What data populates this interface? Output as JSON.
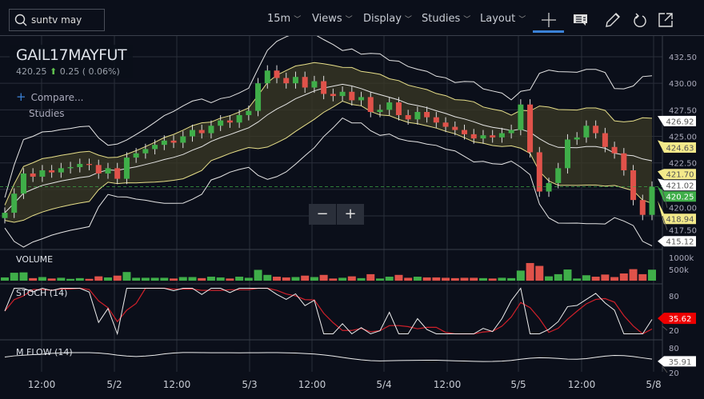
{
  "toolbar": {
    "search_value": "suntv may",
    "interval": "15m",
    "views": "Views",
    "display": "Display",
    "studies": "Studies",
    "layout": "Layout",
    "icons": [
      "crosshair-icon",
      "comment-icon",
      "pencil-icon",
      "undo-icon",
      "popout-icon"
    ]
  },
  "legend": {
    "symbol": "GAIL17MAYFUT",
    "last": "420.25",
    "change": "0.25",
    "change_pct": "( 0.06%)",
    "compare": "Compare...",
    "studies": "Studies"
  },
  "zoom": {
    "minus": "−",
    "plus": "+"
  },
  "colors": {
    "up": "#3fae49",
    "down": "#e0524a",
    "band_outer": "#e6e6e6",
    "band_inner": "#e8e08a",
    "band_fill": "#3b3a26",
    "stoch_d": "#d0202a",
    "accent": "#3b82d8"
  },
  "chart_data": [
    {
      "type": "candlestick",
      "pane": "price",
      "title": "GAIL17MAYFUT",
      "overlay": "bollinger-bands",
      "x_ticks": [
        "12:00",
        "5/2",
        "12:00",
        "5/3",
        "12:00",
        "5/4",
        "12:00",
        "5/5",
        "12:00",
        "5/8"
      ],
      "y_ticks": [
        "432.50",
        "430.00",
        "427.50",
        "425.00",
        "422.50",
        "420.00",
        "417.50"
      ],
      "ylim": [
        416,
        433.5
      ],
      "close": [
        417.8,
        419.6,
        421.5,
        421.2,
        421.8,
        421.6,
        422.0,
        422.1,
        422.4,
        422.3,
        421.5,
        422.0,
        421.0,
        423.0,
        423.4,
        423.8,
        424.2,
        424.6,
        424.4,
        425.0,
        425.6,
        425.3,
        426.0,
        426.5,
        426.3,
        427.0,
        427.4,
        430.0,
        431.2,
        430.5,
        430.0,
        430.6,
        429.6,
        430.2,
        429.0,
        428.8,
        429.2,
        428.4,
        428.7,
        427.3,
        427.5,
        428.2,
        427.0,
        426.6,
        427.3,
        426.8,
        426.3,
        425.9,
        425.6,
        425.2,
        424.8,
        425.1,
        424.9,
        425.3,
        425.6,
        428.0,
        423.5,
        419.8,
        420.6,
        422.0,
        424.7,
        424.9,
        426.0,
        425.3,
        424.0,
        423.4,
        421.8,
        419.0,
        417.6,
        420.25
      ],
      "price_labels": [
        {
          "value": "426.92",
          "kind": "band-outer"
        },
        {
          "value": "424.63",
          "kind": "band-inner"
        },
        {
          "value": "421.70",
          "kind": "band-inner"
        },
        {
          "value": "421.02",
          "kind": "band-outer"
        },
        {
          "value": "420.25",
          "kind": "last"
        },
        {
          "value": "418.94",
          "kind": "band-inner"
        },
        {
          "value": "415.12",
          "kind": "band-outer"
        }
      ]
    },
    {
      "type": "bar",
      "pane": "volume",
      "title": "VOLUME",
      "y_ticks": [
        "1000k",
        "500k"
      ]
    },
    {
      "type": "line",
      "pane": "stoch",
      "title": "STOCH (14)",
      "y_ticks": [
        "80",
        "20"
      ],
      "last_value": "35.62"
    },
    {
      "type": "line",
      "pane": "mflow",
      "title": "M FLOW (14)",
      "y_ticks": [
        "80",
        "20"
      ],
      "last_value": "35.91"
    }
  ]
}
